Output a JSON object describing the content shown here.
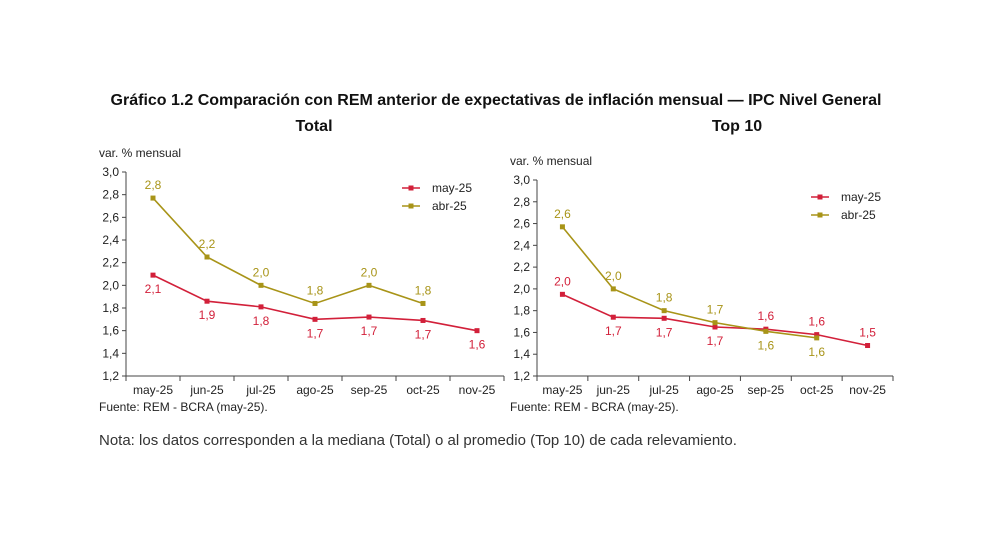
{
  "title": "Gráfico 1.2 Comparación con REM anterior de expectativas de inflación mensual — IPC Nivel General",
  "note": "Nota: los datos corresponden a la mediana (Total) o al promedio (Top 10) de cada relevamiento.",
  "colors": {
    "may25": "#d2203a",
    "abr25": "#a89418",
    "axis": "#444444"
  },
  "chart_data": [
    {
      "type": "line",
      "title": "Total",
      "ylabel": "var. % mensual",
      "source": "Fuente: REM - BCRA (may-25).",
      "categories": [
        "may-25",
        "jun-25",
        "jul-25",
        "ago-25",
        "sep-25",
        "oct-25",
        "nov-25"
      ],
      "yticks": [
        "3,0",
        "2,8",
        "2,6",
        "2,4",
        "2,2",
        "2,0",
        "1,8",
        "1,6",
        "1,4",
        "1,2"
      ],
      "ylim": [
        1.2,
        3.0
      ],
      "legend": "top-right",
      "series": [
        {
          "name": "may-25",
          "values": [
            2.09,
            1.86,
            1.81,
            1.7,
            1.72,
            1.69,
            1.6
          ],
          "labels": [
            "2,1",
            "1,9",
            "1,8",
            "1,7",
            "1,7",
            "1,7",
            "1,6"
          ]
        },
        {
          "name": "abr-25",
          "values": [
            2.77,
            2.25,
            2.0,
            1.84,
            2.0,
            1.84,
            null
          ],
          "labels": [
            "2,8",
            "2,2",
            "2,0",
            "1,8",
            "2,0",
            "1,8",
            ""
          ]
        }
      ]
    },
    {
      "type": "line",
      "title": "Top 10",
      "ylabel": "var. % mensual",
      "source": "Fuente: REM - BCRA (may-25).",
      "categories": [
        "may-25",
        "jun-25",
        "jul-25",
        "ago-25",
        "sep-25",
        "oct-25",
        "nov-25"
      ],
      "yticks": [
        "3,0",
        "2,8",
        "2,6",
        "2,4",
        "2,2",
        "2,0",
        "1,8",
        "1,6",
        "1,4",
        "1,2"
      ],
      "ylim": [
        1.2,
        3.0
      ],
      "legend": "top-right",
      "series": [
        {
          "name": "may-25",
          "values": [
            1.95,
            1.74,
            1.73,
            1.65,
            1.63,
            1.58,
            1.48
          ],
          "labels": [
            "2,0",
            "1,7",
            "1,7",
            "1,7",
            "1,6",
            "1,6",
            "1,5"
          ]
        },
        {
          "name": "abr-25",
          "values": [
            2.57,
            2.0,
            1.8,
            1.69,
            1.61,
            1.55,
            null
          ],
          "labels": [
            "2,6",
            "2,0",
            "1,8",
            "1,7",
            "1,6",
            "1,6",
            ""
          ]
        }
      ]
    }
  ]
}
